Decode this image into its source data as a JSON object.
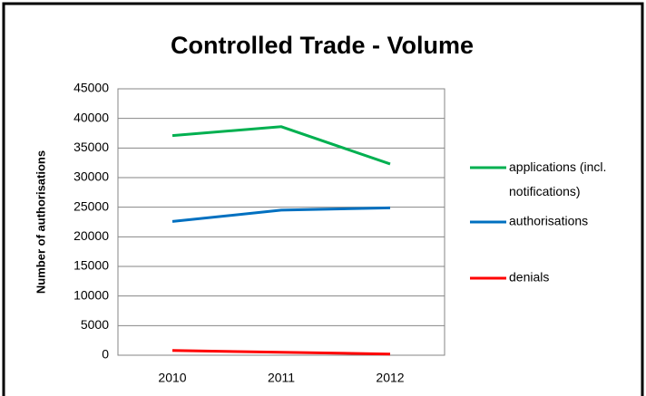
{
  "chart_data": {
    "type": "line",
    "title": "Controlled Trade - Volume",
    "y_label": "Number of authorisations",
    "categories": [
      "2010",
      "2011",
      "2012"
    ],
    "series": [
      {
        "name": "applications (incl. notifications)",
        "color": "#00b050",
        "values": [
          37100,
          38600,
          32300
        ]
      },
      {
        "name": "authorisations",
        "color": "#0070c0",
        "values": [
          22600,
          24500,
          24900
        ]
      },
      {
        "name": "denials",
        "color": "#ff0000",
        "values": [
          800,
          500,
          200
        ]
      }
    ],
    "ylim": [
      0,
      45000
    ],
    "yticks": [
      0,
      5000,
      10000,
      15000,
      20000,
      25000,
      30000,
      35000,
      40000,
      45000
    ],
    "grid": true,
    "legend": "right"
  }
}
